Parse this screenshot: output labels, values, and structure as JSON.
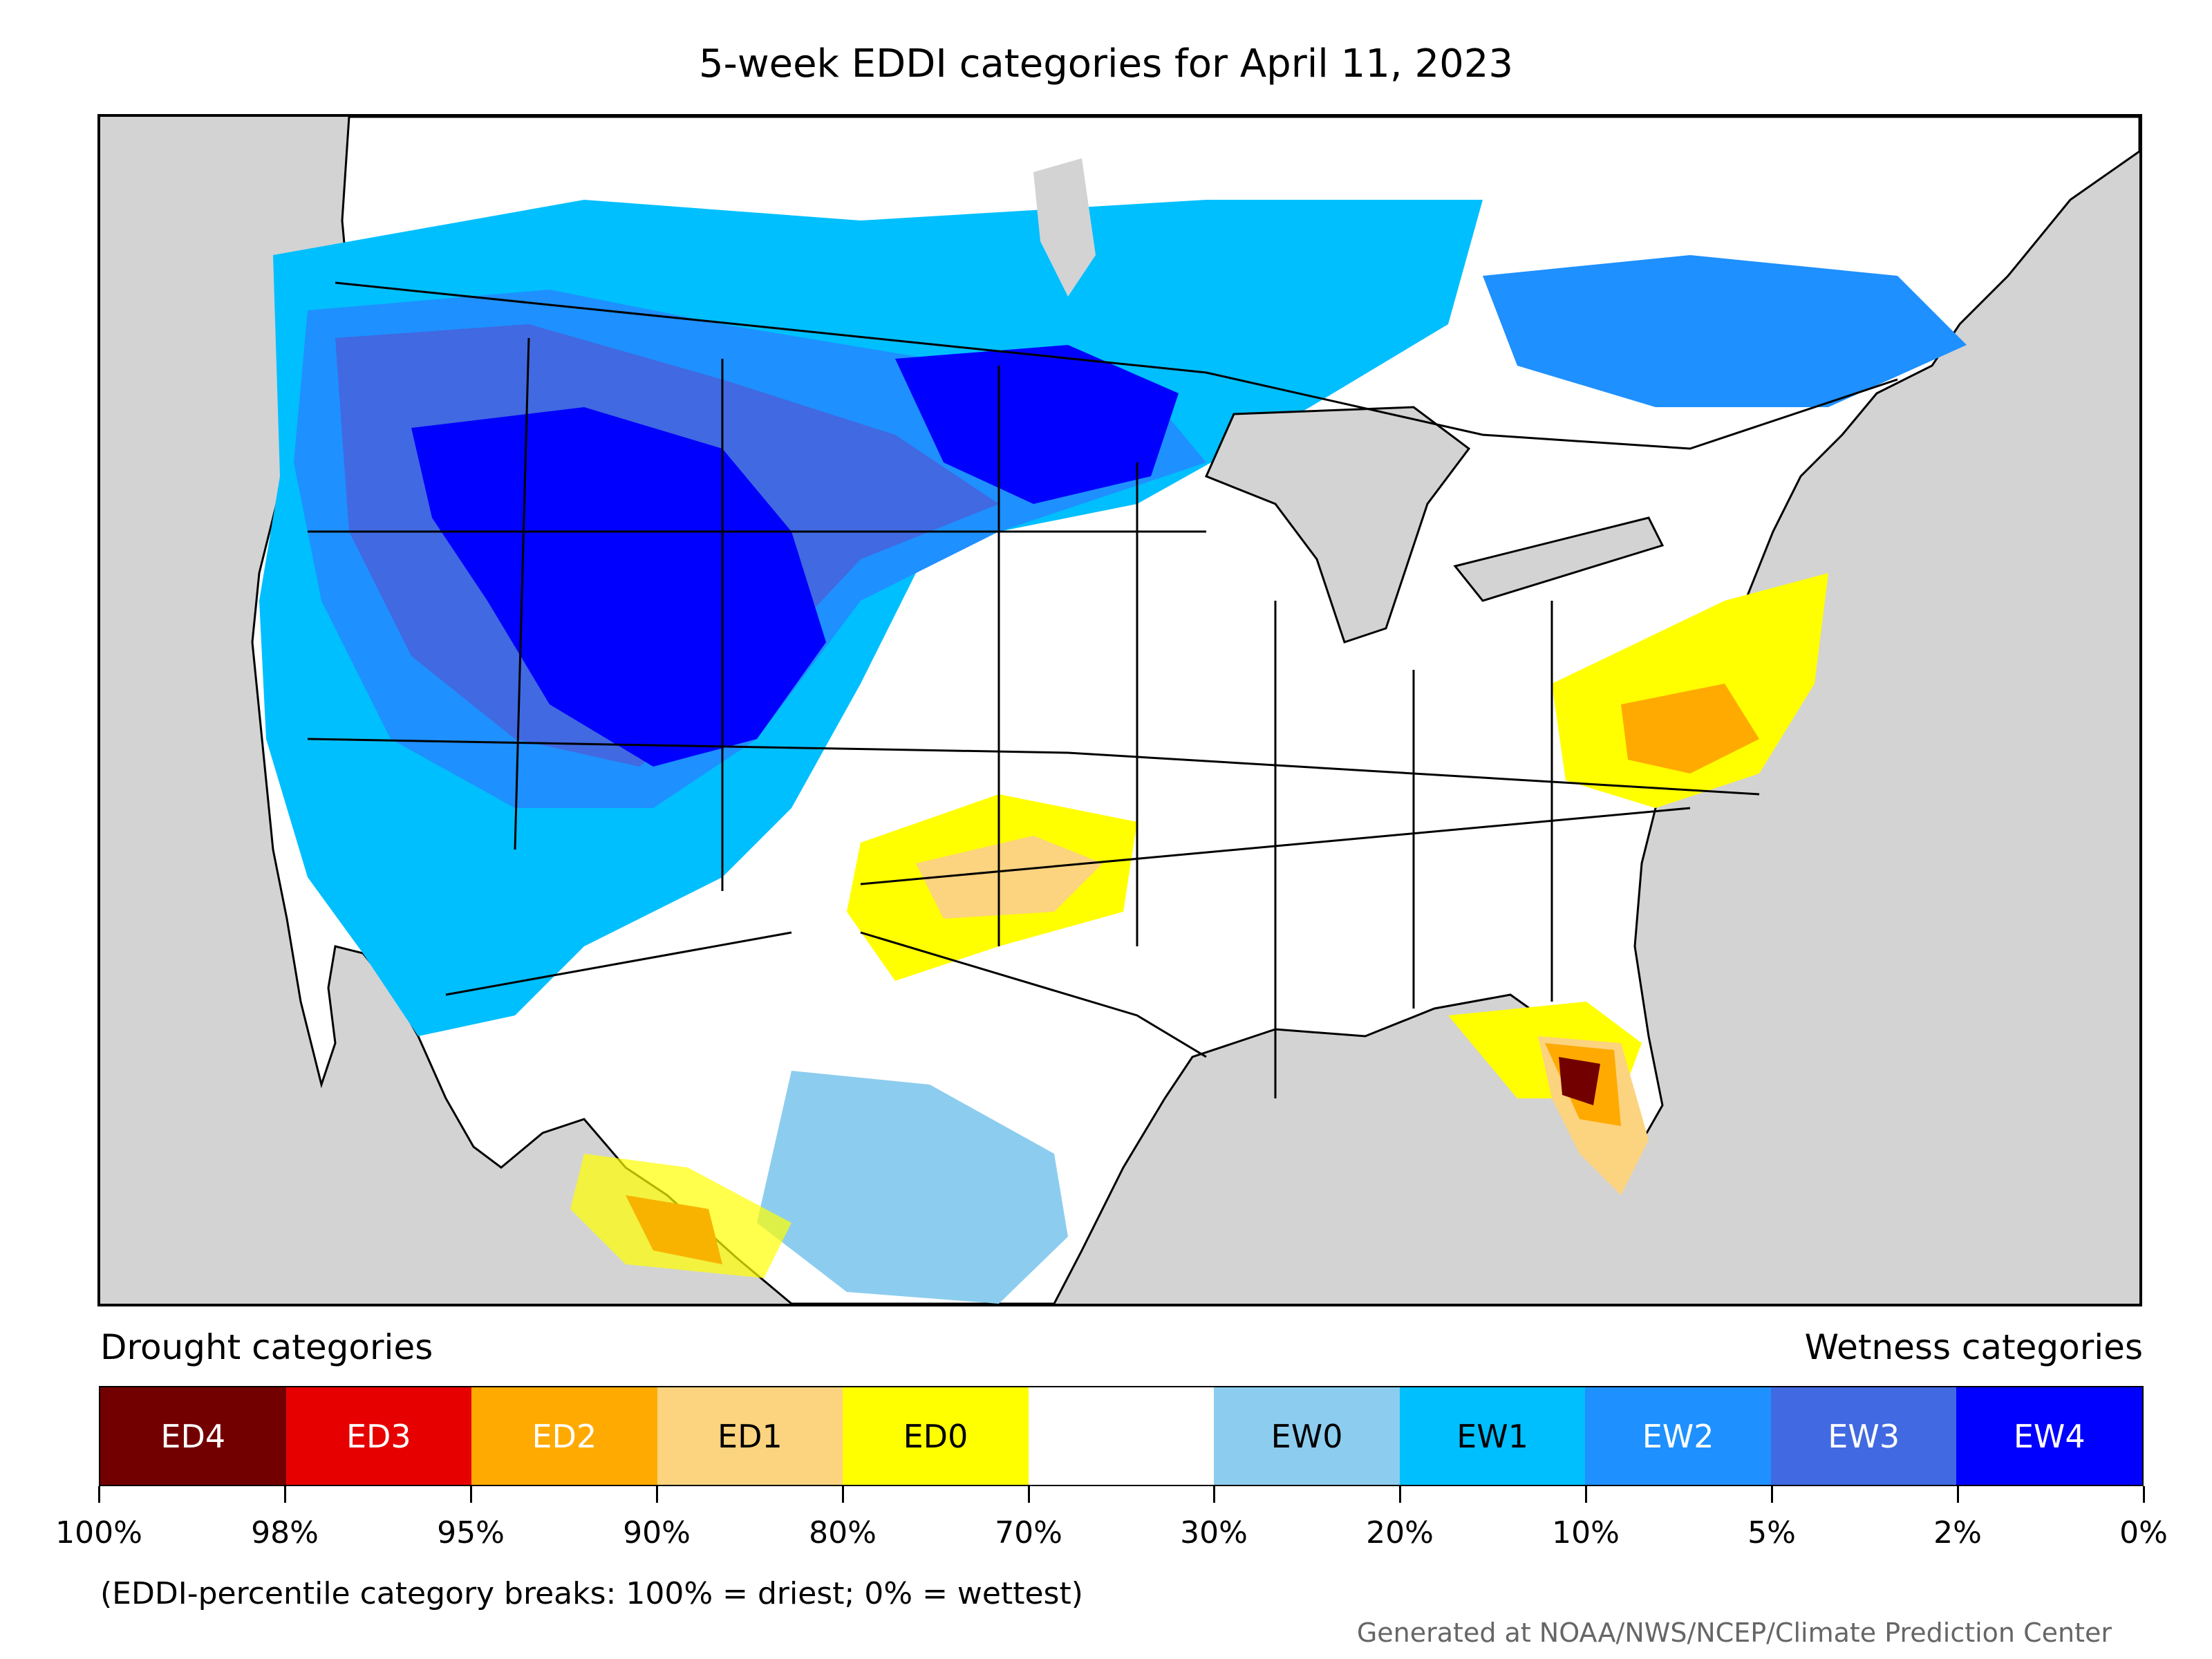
{
  "title": "5-week EDDI categories for April 11, 2023",
  "legend": {
    "drought_label": "Drought categories",
    "wetness_label": "Wetness categories",
    "categories": [
      {
        "label": "ED4",
        "color": "#730000",
        "text_color": "#ffffff"
      },
      {
        "label": "ED3",
        "color": "#e60000",
        "text_color": "#ffffff"
      },
      {
        "label": "ED2",
        "color": "#ffaa00",
        "text_color": "#ffffff"
      },
      {
        "label": "ED1",
        "color": "#fcd37f",
        "text_color": "#000000"
      },
      {
        "label": "ED0",
        "color": "#ffff00",
        "text_color": "#000000"
      },
      {
        "label": "",
        "color": "#ffffff",
        "text_color": "#000000"
      },
      {
        "label": "EW0",
        "color": "#8ccdef",
        "text_color": "#000000"
      },
      {
        "label": "EW1",
        "color": "#00bfff",
        "text_color": "#000000"
      },
      {
        "label": "EW2",
        "color": "#1e90ff",
        "text_color": "#ffffff"
      },
      {
        "label": "EW3",
        "color": "#4169e1",
        "text_color": "#ffffff"
      },
      {
        "label": "EW4",
        "color": "#0000ff",
        "text_color": "#ffffff"
      }
    ],
    "ticks": [
      "100%",
      "98%",
      "95%",
      "90%",
      "80%",
      "70%",
      "30%",
      "20%",
      "10%",
      "5%",
      "2%",
      "0%"
    ]
  },
  "note": "(EDDI-percentile category breaks: 100% = driest; 0% = wettest)",
  "credit": "Generated at NOAA/NWS/NCEP/Climate Prediction Center",
  "map": {
    "ocean_color": "#d3d3d3",
    "land_color": "#ffffff"
  }
}
